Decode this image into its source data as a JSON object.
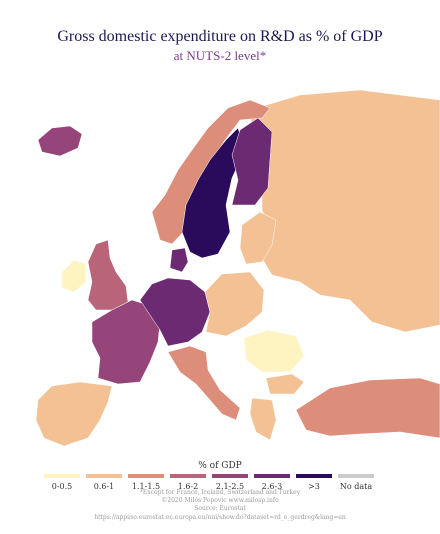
{
  "title": "Gross domestic expenditure on R&D as % of GDP",
  "subtitle": "at NUTS-2 level*",
  "legend": {
    "title": "% of GDP",
    "items": [
      {
        "label": "0-0.5",
        "color": "#fdf4c2"
      },
      {
        "label": "0.6-1",
        "color": "#f4c194"
      },
      {
        "label": "1.1-1.5",
        "color": "#dd8e7b"
      },
      {
        "label": "1.6-2",
        "color": "#b96478"
      },
      {
        "label": "2.1-2.5",
        "color": "#96457a"
      },
      {
        "label": "2.6-3",
        "color": "#6c2a73"
      },
      {
        "label": ">3",
        "color": "#2a0a5a"
      },
      {
        "label": "No data",
        "color": "#cccccc"
      }
    ]
  },
  "notes": {
    "line1": "*Except for France, Ireland, Switzerland and Turkey",
    "line2": "©2020 Milos Popovic www.milosp.info",
    "line3": "Source: Eurostat",
    "line4": "https://appsso.eurostat.ec.europa.eu/nui/show.do?dataset=rd_e_gerdreg&lang=en"
  },
  "map_regions": [
    {
      "name": "iceland",
      "color": "#96457a"
    },
    {
      "name": "norway",
      "color": "#dd8e7b"
    },
    {
      "name": "sweden",
      "color": "#2a0a5a"
    },
    {
      "name": "finland",
      "color": "#6c2a73"
    },
    {
      "name": "denmark",
      "color": "#6c2a73"
    },
    {
      "name": "baltics",
      "color": "#f4c194"
    },
    {
      "name": "ireland",
      "color": "#fdf4c2"
    },
    {
      "name": "united-kingdom",
      "color": "#b96478"
    },
    {
      "name": "france",
      "color": "#96457a"
    },
    {
      "name": "iberia",
      "color": "#f4c194"
    },
    {
      "name": "germany",
      "color": "#6c2a73"
    },
    {
      "name": "poland",
      "color": "#f4c194"
    },
    {
      "name": "italy",
      "color": "#dd8e7b"
    },
    {
      "name": "romania",
      "color": "#fdf4c2"
    },
    {
      "name": "bulgaria",
      "color": "#f4c194"
    },
    {
      "name": "greece",
      "color": "#f4c194"
    },
    {
      "name": "turkey",
      "color": "#dd8e7b"
    },
    {
      "name": "belarus-ukraine-russia",
      "color": "#cccccc"
    }
  ]
}
